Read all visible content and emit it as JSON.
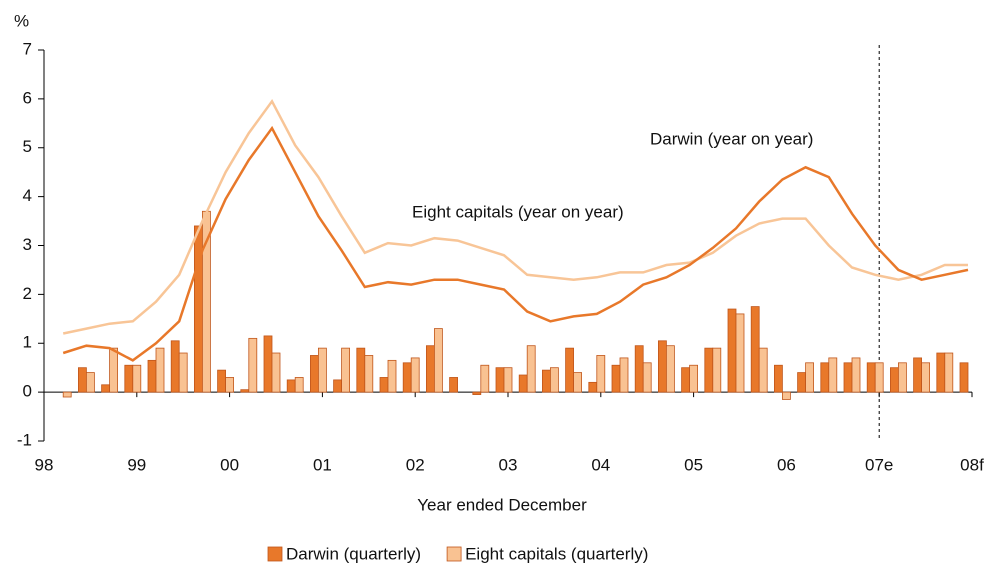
{
  "chart_data": {
    "type": "combo",
    "ylabel": "%",
    "xlabel": "Year ended December",
    "xlim": [
      1998,
      2008
    ],
    "xticks": [
      {
        "value": 1998,
        "label": "98"
      },
      {
        "value": 1999,
        "label": "99"
      },
      {
        "value": 2000,
        "label": "00"
      },
      {
        "value": 2001,
        "label": "01"
      },
      {
        "value": 2002,
        "label": "02"
      },
      {
        "value": 2003,
        "label": "03"
      },
      {
        "value": 2004,
        "label": "04"
      },
      {
        "value": 2005,
        "label": "05"
      },
      {
        "value": 2006,
        "label": "06"
      },
      {
        "value": 2007,
        "label": "07e"
      },
      {
        "value": 2008,
        "label": "08f"
      }
    ],
    "ylim": [
      -1,
      7
    ],
    "yticks": [
      -1,
      0,
      1,
      2,
      3,
      4,
      5,
      6,
      7
    ],
    "forecast_line": 2007,
    "x": [
      1998.25,
      1998.5,
      1998.75,
      1999,
      1999.25,
      1999.5,
      1999.75,
      2000,
      2000.25,
      2000.5,
      2000.75,
      2001,
      2001.25,
      2001.5,
      2001.75,
      2002,
      2002.25,
      2002.5,
      2002.75,
      2003,
      2003.25,
      2003.5,
      2003.75,
      2004,
      2004.25,
      2004.5,
      2004.75,
      2005,
      2005.25,
      2005.5,
      2005.75,
      2006,
      2006.25,
      2006.5,
      2006.75,
      2007,
      2007.25,
      2007.5,
      2007.75,
      2008
    ],
    "series": [
      {
        "name": "Darwin (quarterly)",
        "type": "bar",
        "color": "#e8782a",
        "values": [
          0,
          0.5,
          0.15,
          0.55,
          0.65,
          1.05,
          3.4,
          0.45,
          0.05,
          1.15,
          0.25,
          0.75,
          0.25,
          0.9,
          0.3,
          0.6,
          0.95,
          0.3,
          -0.05,
          0.5,
          0.35,
          0.45,
          0.9,
          0.2,
          0.55,
          0.95,
          1.05,
          0.5,
          0.9,
          1.7,
          1.75,
          0.55,
          0.4,
          0.6,
          0.6,
          0.6,
          0.5,
          0.7,
          0.8,
          0.6
        ]
      },
      {
        "name": "Eight capitals (quarterly)",
        "type": "bar",
        "color": "#f9c292",
        "values": [
          -0.1,
          0.4,
          0.9,
          0.55,
          0.9,
          0.8,
          3.7,
          0.3,
          1.1,
          0.8,
          0.3,
          0.9,
          0.9,
          0.75,
          0.65,
          0.7,
          1.3,
          null,
          0.55,
          0.5,
          0.95,
          0.5,
          0.4,
          0.75,
          0.7,
          0.6,
          0.95,
          0.55,
          0.9,
          1.6,
          0.9,
          -0.15,
          0.6,
          0.7,
          0.7,
          0.6,
          0.6,
          0.6,
          0.8,
          null
        ]
      },
      {
        "name": "Darwin (year on year)",
        "type": "line",
        "color": "#e8782a",
        "values": [
          0.8,
          0.95,
          0.9,
          0.65,
          1.0,
          1.45,
          2.9,
          3.95,
          4.75,
          5.4,
          4.5,
          3.6,
          2.9,
          2.15,
          2.25,
          2.2,
          2.3,
          2.3,
          2.2,
          2.1,
          1.65,
          1.45,
          1.55,
          1.6,
          1.85,
          2.2,
          2.35,
          2.6,
          2.95,
          3.35,
          3.9,
          4.35,
          4.6,
          4.4,
          3.65,
          3.0,
          2.5,
          2.3,
          2.4,
          2.5
        ]
      },
      {
        "name": "Eight capitals (year on year)",
        "type": "line",
        "color": "#f8c597",
        "values": [
          1.2,
          1.3,
          1.4,
          1.45,
          1.85,
          2.4,
          3.5,
          4.5,
          5.3,
          5.95,
          5.05,
          4.4,
          3.6,
          2.85,
          3.05,
          3.0,
          3.15,
          3.1,
          2.95,
          2.8,
          2.4,
          2.35,
          2.3,
          2.35,
          2.45,
          2.45,
          2.6,
          2.65,
          2.85,
          3.2,
          3.45,
          3.55,
          3.55,
          3.0,
          2.55,
          2.4,
          2.3,
          2.4,
          2.6,
          2.6
        ]
      }
    ]
  }
}
